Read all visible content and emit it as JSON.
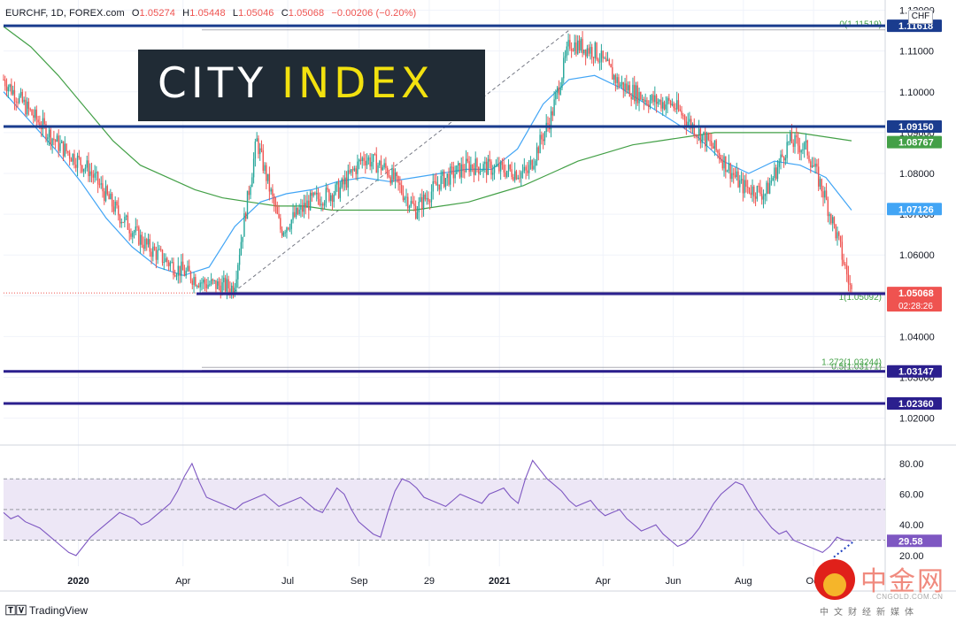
{
  "header": {
    "symbol": "EURCHF, 1D, FOREX.com",
    "open_label": "O",
    "open": "1.05274",
    "high_label": "H",
    "high": "1.05448",
    "low_label": "L",
    "low": "1.05046",
    "close_label": "C",
    "close": "1.05068",
    "change": "−0.00206 (−0.20%)"
  },
  "currency_badge": "CHF",
  "logo": {
    "word1": "CITY",
    "word2": "INDEX",
    "bg": "#202b35",
    "word1_color": "#ffffff",
    "word2_color": "#f2e10f"
  },
  "footer": {
    "brand": "TradingView"
  },
  "watermark": {
    "zh": "中金网",
    "en": "CNGOLD.COM.CN",
    "sub": "中文财经新媒体"
  },
  "colors": {
    "up": "#26a69a",
    "down": "#ef5350",
    "ma_fast": "#42a5f5",
    "ma_slow": "#43a047",
    "hline": "#1a3c8e",
    "support": "#2b1f8e",
    "rsi_line": "#7e57c2",
    "rsi_band": "#ede7f6"
  },
  "chart_data": [
    {
      "type": "candlestick",
      "title": "EURCHF, 1D",
      "y_axis": {
        "ticks": [
          "1.12000",
          "1.11000",
          "1.10000",
          "1.09000",
          "1.08000",
          "1.07000",
          "1.06000",
          "1.05000",
          "1.04000",
          "1.03000",
          "1.02000"
        ],
        "range": [
          1.0145,
          1.1225
        ]
      },
      "x_axis": {
        "ticks": [
          "2020",
          "Apr",
          "Jul",
          "Sep",
          "29",
          "2021",
          "Apr",
          "Jun",
          "Aug",
          "Oct"
        ]
      },
      "close_path": [
        {
          "date": "2019-10-28",
          "close": 1.103
        },
        {
          "date": "2019-11-20",
          "close": 1.095
        },
        {
          "date": "2019-12-15",
          "close": 1.087
        },
        {
          "date": "2020-01-10",
          "close": 1.081
        },
        {
          "date": "2020-02-05",
          "close": 1.07
        },
        {
          "date": "2020-03-01",
          "close": 1.062
        },
        {
          "date": "2020-03-25",
          "close": 1.057
        },
        {
          "date": "2020-04-20",
          "close": 1.053
        },
        {
          "date": "2020-05-15",
          "close": 1.052
        },
        {
          "date": "2020-06-04",
          "close": 1.088
        },
        {
          "date": "2020-06-25",
          "close": 1.066
        },
        {
          "date": "2020-07-20",
          "close": 1.073
        },
        {
          "date": "2020-08-15",
          "close": 1.076
        },
        {
          "date": "2020-09-05",
          "close": 1.084
        },
        {
          "date": "2020-09-25",
          "close": 1.081
        },
        {
          "date": "2020-10-20",
          "close": 1.071
        },
        {
          "date": "2020-11-10",
          "close": 1.078
        },
        {
          "date": "2020-12-05",
          "close": 1.082
        },
        {
          "date": "2021-01-01",
          "close": 1.081
        },
        {
          "date": "2021-01-25",
          "close": 1.08
        },
        {
          "date": "2021-02-15",
          "close": 1.094
        },
        {
          "date": "2021-03-03",
          "close": 1.112
        },
        {
          "date": "2021-03-25",
          "close": 1.11
        },
        {
          "date": "2021-04-15",
          "close": 1.102
        },
        {
          "date": "2021-05-10",
          "close": 1.098
        },
        {
          "date": "2021-05-31",
          "close": 1.097
        },
        {
          "date": "2021-06-20",
          "close": 1.091
        },
        {
          "date": "2021-07-10",
          "close": 1.085
        },
        {
          "date": "2021-07-30",
          "close": 1.077
        },
        {
          "date": "2021-08-20",
          "close": 1.075
        },
        {
          "date": "2021-09-10",
          "close": 1.088
        },
        {
          "date": "2021-09-25",
          "close": 1.086
        },
        {
          "date": "2021-10-10",
          "close": 1.075
        },
        {
          "date": "2021-10-22",
          "close": 1.064
        },
        {
          "date": "2021-11-03",
          "close": 1.0507
        }
      ],
      "ma_fast_path": [
        1.1,
        1.093,
        1.086,
        1.078,
        1.069,
        1.062,
        1.057,
        1.055,
        1.057,
        1.067,
        1.073,
        1.075,
        1.076,
        1.078,
        1.079,
        1.078,
        1.079,
        1.08,
        1.081,
        1.081,
        1.086,
        1.097,
        1.103,
        1.104,
        1.101,
        1.097,
        1.093,
        1.089,
        1.083,
        1.08,
        1.083,
        1.082,
        1.079,
        1.071
      ],
      "ma_slow_path": [
        1.116,
        1.111,
        1.104,
        1.096,
        1.088,
        1.082,
        1.079,
        1.076,
        1.074,
        1.073,
        1.072,
        1.072,
        1.071,
        1.071,
        1.071,
        1.071,
        1.072,
        1.073,
        1.075,
        1.077,
        1.08,
        1.083,
        1.085,
        1.087,
        1.088,
        1.089,
        1.09,
        1.09,
        1.09,
        1.09,
        1.089,
        1.088
      ],
      "horizontal_levels": [
        {
          "value": 1.11618,
          "label": "1.11618",
          "color": "#1a3c8e"
        },
        {
          "value": 1.0915,
          "label": "1.09150",
          "color": "#1a3c8e"
        },
        {
          "value": 1.05049,
          "label": "1.05049",
          "color": "#2b1f8e"
        },
        {
          "value": 1.03147,
          "label": "1.03147",
          "color": "#2b1f8e"
        },
        {
          "value": 1.0236,
          "label": "1.02360",
          "color": "#2b1f8e"
        }
      ],
      "price_badges": [
        {
          "value": 1.08767,
          "label": "1.08767",
          "color": "#43a047"
        },
        {
          "value": 1.07126,
          "label": "1.07126",
          "color": "#42a5f5"
        },
        {
          "value": 1.05068,
          "label": "1.05068",
          "sublabel": "02:28:26",
          "color": "#ef5350"
        }
      ],
      "fib_levels": [
        {
          "value": 1.11519,
          "label": "0(1.11519)"
        },
        {
          "value": 1.05092,
          "label": "1(1.05092)"
        },
        {
          "value": 1.03171,
          "label": "0.5(1.03171)"
        },
        {
          "value": 1.03244,
          "label": "1.272(1.03244)"
        }
      ]
    },
    {
      "type": "line",
      "title": "RSI",
      "y_axis": {
        "ticks": [
          "80.00",
          "60.00",
          "40.00",
          "20.00"
        ],
        "range": [
          13,
          88
        ],
        "band": [
          30,
          70
        ],
        "mid": 50
      },
      "last_value": "29.58",
      "values": [
        48,
        44,
        46,
        42,
        40,
        38,
        34,
        30,
        26,
        22,
        20,
        26,
        32,
        36,
        40,
        44,
        48,
        46,
        44,
        40,
        42,
        46,
        50,
        54,
        62,
        72,
        80,
        68,
        58,
        56,
        54,
        52,
        50,
        54,
        56,
        58,
        60,
        56,
        52,
        54,
        56,
        58,
        54,
        50,
        48,
        56,
        64,
        60,
        50,
        42,
        38,
        34,
        32,
        48,
        62,
        70,
        68,
        64,
        58,
        56,
        54,
        52,
        56,
        60,
        58,
        56,
        54,
        60,
        62,
        64,
        58,
        54,
        70,
        82,
        76,
        70,
        66,
        62,
        56,
        52,
        54,
        56,
        50,
        46,
        48,
        50,
        44,
        40,
        36,
        38,
        40,
        34,
        30,
        26,
        28,
        32,
        38,
        46,
        54,
        60,
        64,
        68,
        66,
        58,
        50,
        44,
        38,
        34,
        36,
        30,
        28,
        26,
        24,
        22,
        26,
        32,
        30,
        29.58
      ]
    }
  ]
}
